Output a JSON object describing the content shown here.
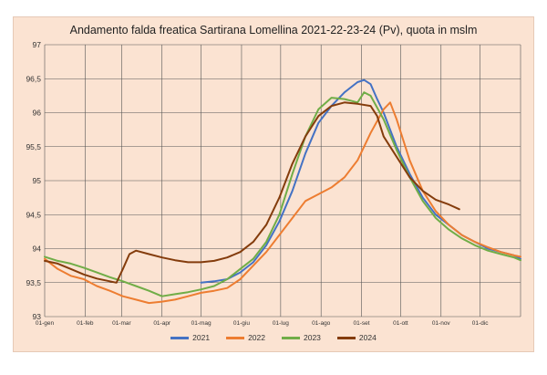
{
  "chart_data": {
    "type": "line",
    "title": "Andamento  falda freatica Sartirana Lomellina 2021-22-23-24 (Pv), quota in mslm",
    "xlabel": "",
    "ylabel": "",
    "ylim": [
      93,
      97
    ],
    "yticks": [
      "93",
      "93,5",
      "94",
      "94,5",
      "95",
      "95,5",
      "96",
      "96,5",
      "97"
    ],
    "xticks": [
      "01-gen",
      "01-feb",
      "01-mar",
      "01-apr",
      "01-mag",
      "01-giu",
      "01-lug",
      "01-ago",
      "01-set",
      "01-ott",
      "01-nov",
      "01-dic"
    ],
    "grid": true,
    "legend_position": "bottom",
    "series": [
      {
        "name": "2021",
        "color": "#4472c4",
        "points": [
          [
            120,
            93.5
          ],
          [
            130,
            93.52
          ],
          [
            140,
            93.55
          ],
          [
            150,
            93.65
          ],
          [
            160,
            93.8
          ],
          [
            170,
            94.05
          ],
          [
            180,
            94.4
          ],
          [
            190,
            94.85
          ],
          [
            200,
            95.4
          ],
          [
            210,
            95.85
          ],
          [
            220,
            96.1
          ],
          [
            230,
            96.3
          ],
          [
            240,
            96.45
          ],
          [
            245,
            96.48
          ],
          [
            250,
            96.42
          ],
          [
            255,
            96.2
          ],
          [
            260,
            96.0
          ],
          [
            270,
            95.5
          ],
          [
            280,
            95.1
          ],
          [
            290,
            94.75
          ],
          [
            300,
            94.5
          ],
          [
            310,
            94.35
          ],
          [
            320,
            94.2
          ],
          [
            330,
            94.1
          ],
          [
            340,
            94.0
          ],
          [
            350,
            93.95
          ],
          [
            360,
            93.9
          ],
          [
            365,
            93.85
          ]
        ]
      },
      {
        "name": "2022",
        "color": "#ed7d31",
        "points": [
          [
            0,
            93.85
          ],
          [
            10,
            93.7
          ],
          [
            20,
            93.6
          ],
          [
            30,
            93.55
          ],
          [
            40,
            93.45
          ],
          [
            50,
            93.38
          ],
          [
            60,
            93.3
          ],
          [
            70,
            93.25
          ],
          [
            80,
            93.2
          ],
          [
            90,
            93.22
          ],
          [
            100,
            93.25
          ],
          [
            110,
            93.3
          ],
          [
            120,
            93.35
          ],
          [
            130,
            93.38
          ],
          [
            140,
            93.42
          ],
          [
            150,
            93.55
          ],
          [
            160,
            93.75
          ],
          [
            170,
            93.95
          ],
          [
            180,
            94.2
          ],
          [
            190,
            94.45
          ],
          [
            200,
            94.7
          ],
          [
            210,
            94.8
          ],
          [
            220,
            94.9
          ],
          [
            230,
            95.05
          ],
          [
            240,
            95.3
          ],
          [
            250,
            95.7
          ],
          [
            260,
            96.05
          ],
          [
            265,
            96.15
          ],
          [
            270,
            95.9
          ],
          [
            280,
            95.3
          ],
          [
            290,
            94.85
          ],
          [
            300,
            94.55
          ],
          [
            310,
            94.35
          ],
          [
            320,
            94.2
          ],
          [
            330,
            94.1
          ],
          [
            340,
            94.02
          ],
          [
            350,
            93.95
          ],
          [
            360,
            93.9
          ],
          [
            365,
            93.88
          ]
        ]
      },
      {
        "name": "2023",
        "color": "#70ad47",
        "points": [
          [
            0,
            93.88
          ],
          [
            10,
            93.82
          ],
          [
            20,
            93.78
          ],
          [
            30,
            93.72
          ],
          [
            40,
            93.65
          ],
          [
            50,
            93.58
          ],
          [
            60,
            93.52
          ],
          [
            70,
            93.45
          ],
          [
            80,
            93.38
          ],
          [
            90,
            93.3
          ],
          [
            100,
            93.33
          ],
          [
            110,
            93.36
          ],
          [
            120,
            93.4
          ],
          [
            130,
            93.45
          ],
          [
            140,
            93.55
          ],
          [
            150,
            93.7
          ],
          [
            160,
            93.85
          ],
          [
            170,
            94.1
          ],
          [
            180,
            94.5
          ],
          [
            190,
            95.1
          ],
          [
            200,
            95.65
          ],
          [
            210,
            96.05
          ],
          [
            220,
            96.22
          ],
          [
            230,
            96.2
          ],
          [
            240,
            96.15
          ],
          [
            245,
            96.3
          ],
          [
            250,
            96.25
          ],
          [
            260,
            95.9
          ],
          [
            270,
            95.45
          ],
          [
            280,
            95.05
          ],
          [
            290,
            94.7
          ],
          [
            300,
            94.45
          ],
          [
            310,
            94.28
          ],
          [
            320,
            94.15
          ],
          [
            330,
            94.05
          ],
          [
            340,
            93.97
          ],
          [
            350,
            93.92
          ],
          [
            360,
            93.87
          ],
          [
            365,
            93.83
          ]
        ]
      },
      {
        "name": "2024",
        "color": "#843c0c",
        "points": [
          [
            0,
            93.82
          ],
          [
            10,
            93.78
          ],
          [
            20,
            93.7
          ],
          [
            30,
            93.62
          ],
          [
            40,
            93.56
          ],
          [
            50,
            93.52
          ],
          [
            55,
            93.5
          ],
          [
            60,
            93.7
          ],
          [
            65,
            93.92
          ],
          [
            70,
            93.97
          ],
          [
            80,
            93.92
          ],
          [
            90,
            93.87
          ],
          [
            100,
            93.83
          ],
          [
            110,
            93.8
          ],
          [
            120,
            93.8
          ],
          [
            130,
            93.82
          ],
          [
            140,
            93.87
          ],
          [
            150,
            93.95
          ],
          [
            160,
            94.1
          ],
          [
            170,
            94.35
          ],
          [
            180,
            94.75
          ],
          [
            190,
            95.25
          ],
          [
            200,
            95.65
          ],
          [
            210,
            95.95
          ],
          [
            220,
            96.1
          ],
          [
            230,
            96.15
          ],
          [
            240,
            96.13
          ],
          [
            250,
            96.1
          ],
          [
            255,
            95.95
          ],
          [
            260,
            95.65
          ],
          [
            270,
            95.35
          ],
          [
            280,
            95.05
          ],
          [
            290,
            94.85
          ],
          [
            300,
            94.72
          ],
          [
            310,
            94.65
          ],
          [
            318,
            94.58
          ]
        ]
      }
    ]
  }
}
